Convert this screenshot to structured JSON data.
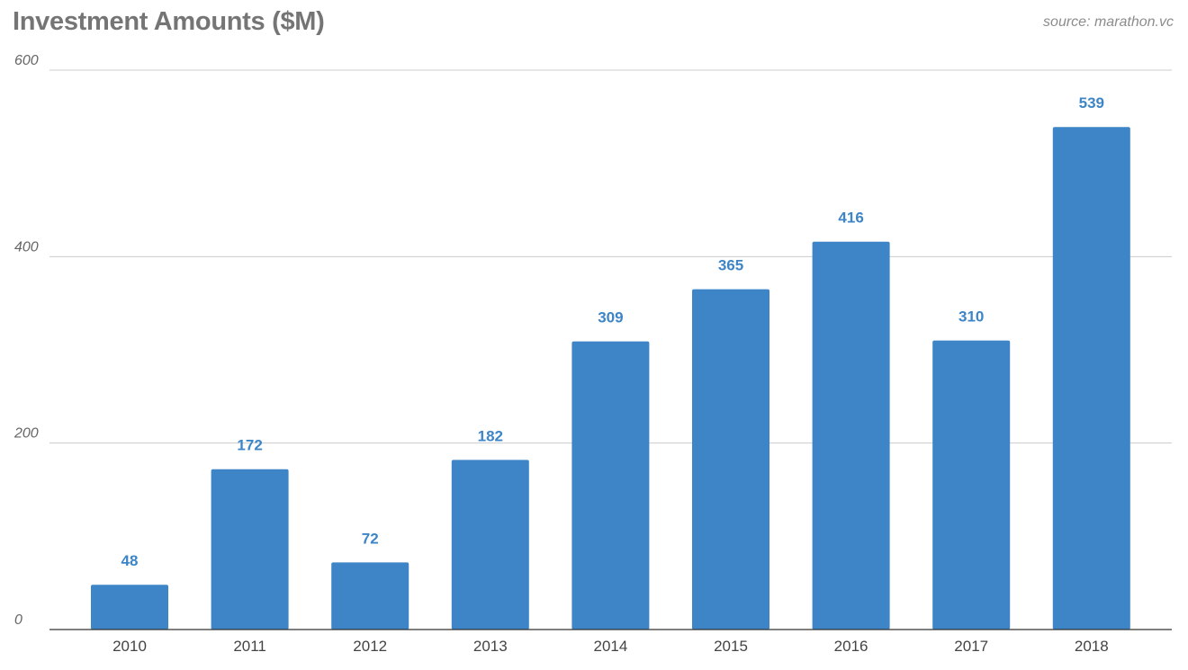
{
  "header": {
    "title": "Investment Amounts ($M)",
    "source": "source: marathon.vc"
  },
  "colors": {
    "bar": "#3d85c6",
    "label": "#3d85c6"
  },
  "chart_data": {
    "type": "bar",
    "title": "Investment Amounts ($M)",
    "categories": [
      "2010",
      "2011",
      "2012",
      "2013",
      "2014",
      "2015",
      "2016",
      "2017",
      "2018"
    ],
    "values": [
      48,
      172,
      72,
      182,
      309,
      365,
      416,
      310,
      539
    ],
    "xlabel": "",
    "ylabel": "",
    "ylim": [
      0,
      600
    ],
    "yticks": [
      0,
      200,
      400,
      600
    ],
    "grid": true,
    "data_labels": true,
    "legend": "none"
  }
}
